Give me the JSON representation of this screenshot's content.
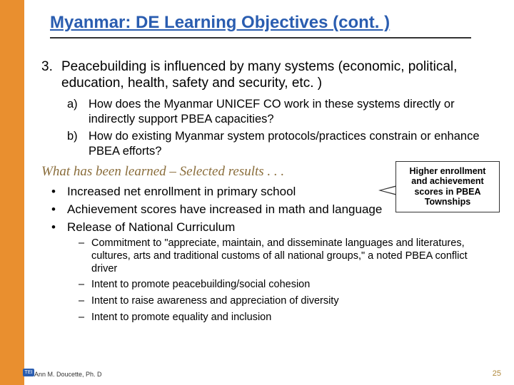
{
  "title": "Myanmar: DE Learning Objectives (cont. )",
  "item3": {
    "num": "3.",
    "text": "Peacebuilding is influenced by many systems (economic, political, education, health, safety and security, etc. )"
  },
  "subs": [
    {
      "m": "a)",
      "t": "How does the Myanmar UNICEF CO work in these systems directly or indirectly support PBEA capacities?"
    },
    {
      "m": "b)",
      "t": "How do existing Myanmar system protocols/practices constrain or enhance PBEA efforts?"
    }
  ],
  "sectionHead": "What has been learned – Selected results . . .",
  "bullets": [
    "Increased net enrollment in primary school",
    "Achievement scores have increased in math and language",
    "Release of National Curriculum"
  ],
  "dashes": [
    "Commitment to \"appreciate, maintain, and disseminate languages and literatures, cultures, arts and traditional customs of all national groups,\" a noted PBEA conflict driver",
    "Intent to promote peacebuilding/social cohesion",
    "Intent to raise awareness and appreciation of diversity",
    "Intent to promote equality and inclusion"
  ],
  "callout": "Higher enrollment and achievement scores in PBEA Townships",
  "author": "Ann M. Doucette, Ph. D",
  "logo": "TEI",
  "page": "25",
  "colors": {
    "accent": "#e98f2f",
    "titleBlue": "#2a5db0",
    "sectionGold": "#8a6d3b"
  }
}
